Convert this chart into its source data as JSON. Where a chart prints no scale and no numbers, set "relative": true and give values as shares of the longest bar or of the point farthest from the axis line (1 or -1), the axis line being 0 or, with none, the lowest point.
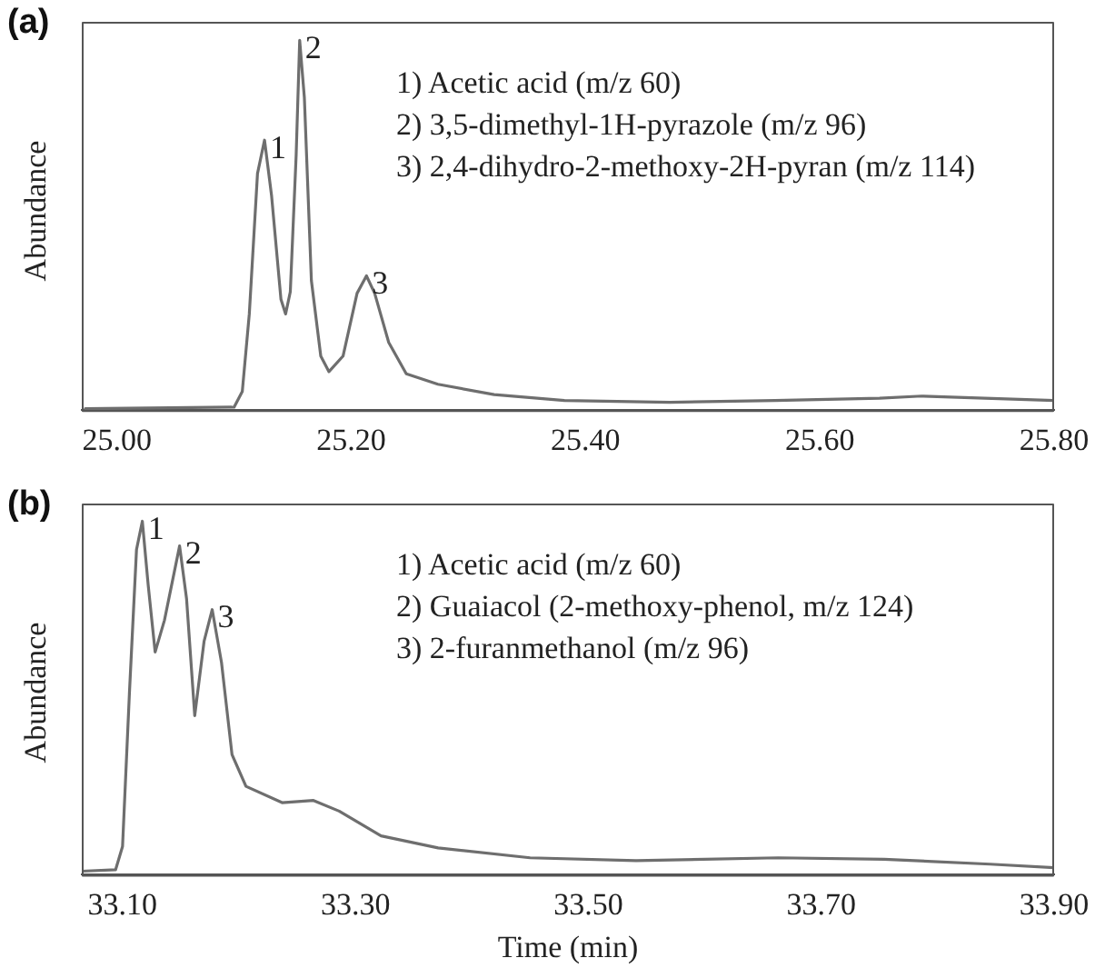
{
  "chart_data": [
    {
      "type": "line",
      "title": "(a)",
      "ylabel": "Abundance",
      "relative": true,
      "color": "#6e6e6e",
      "grid": false,
      "legend": false,
      "marker": "none",
      "xlim": [
        24.97,
        25.8
      ],
      "xticks": [
        {
          "value": 25.0,
          "label": "25.00"
        },
        {
          "value": 25.2,
          "label": "25.20"
        },
        {
          "value": 25.4,
          "label": "25.40"
        },
        {
          "value": 25.6,
          "label": "25.60"
        },
        {
          "value": 25.8,
          "label": "25.80"
        }
      ],
      "x": [
        24.973,
        25.1,
        25.107,
        25.113,
        25.12,
        25.126,
        25.132,
        25.14,
        25.144,
        25.148,
        25.153,
        25.156,
        25.16,
        25.166,
        25.174,
        25.181,
        25.193,
        25.205,
        25.213,
        25.22,
        25.232,
        25.247,
        25.274,
        25.322,
        25.382,
        25.472,
        25.562,
        25.651,
        25.687,
        25.741,
        25.8
      ],
      "values": [
        0.004,
        0.008,
        0.05,
        0.26,
        0.64,
        0.73,
        0.58,
        0.3,
        0.26,
        0.32,
        0.69,
        1.0,
        0.845,
        0.35,
        0.146,
        0.104,
        0.146,
        0.316,
        0.363,
        0.316,
        0.183,
        0.098,
        0.07,
        0.042,
        0.026,
        0.021,
        0.026,
        0.032,
        0.038,
        0.032,
        0.026
      ],
      "annotations": [
        {
          "text": "1",
          "x": 25.126,
          "y": 0.73
        },
        {
          "text": "2",
          "x": 25.156,
          "y": 1.0
        },
        {
          "text": "3",
          "x": 25.213,
          "y": 0.363
        },
        "1)  Acetic acid (m/z 60)",
        "2)  3,5-dimethyl-1H-pyrazole (m/z 96)",
        "3)  2,4-dihydro-2-methoxy-2H-pyran (m/z 114)"
      ]
    },
    {
      "type": "line",
      "title": "(b)",
      "ylabel": "Abundance",
      "xlabel": "Time (min)",
      "relative": true,
      "color": "#6e6e6e",
      "grid": false,
      "legend": false,
      "marker": "none",
      "xlim": [
        33.065,
        33.9
      ],
      "xticks": [
        {
          "value": 33.1,
          "label": "33.10"
        },
        {
          "value": 33.3,
          "label": "33.30"
        },
        {
          "value": 33.5,
          "label": "33.50"
        },
        {
          "value": 33.7,
          "label": "33.70"
        },
        {
          "value": 33.9,
          "label": "33.90"
        }
      ],
      "x": [
        33.065,
        33.094,
        33.1,
        33.106,
        33.112,
        33.117,
        33.122,
        33.128,
        33.136,
        33.149,
        33.155,
        33.162,
        33.17,
        33.177,
        33.185,
        33.194,
        33.206,
        33.237,
        33.264,
        33.286,
        33.322,
        33.371,
        33.45,
        33.541,
        33.663,
        33.754,
        33.845,
        33.9
      ],
      "values": [
        0.01,
        0.014,
        0.08,
        0.52,
        0.92,
        1.0,
        0.82,
        0.63,
        0.72,
        0.93,
        0.78,
        0.45,
        0.66,
        0.75,
        0.6,
        0.34,
        0.25,
        0.204,
        0.21,
        0.18,
        0.11,
        0.076,
        0.048,
        0.04,
        0.048,
        0.044,
        0.03,
        0.02
      ],
      "annotations": [
        {
          "text": "1",
          "x": 33.117,
          "y": 1.0
        },
        {
          "text": "2",
          "x": 33.149,
          "y": 0.93
        },
        {
          "text": "3",
          "x": 33.177,
          "y": 0.75
        },
        "1)  Acetic acid (m/z 60)",
        "2)  Guaiacol (2-methoxy-phenol, m/z 124)",
        "3)  2-furanmethanol (m/z 96)"
      ]
    }
  ]
}
